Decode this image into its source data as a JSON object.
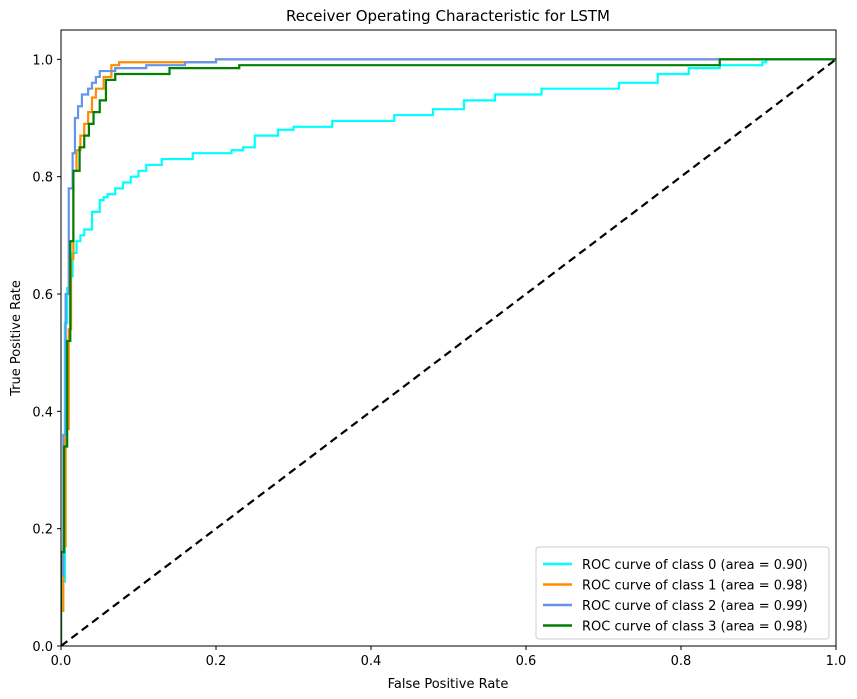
{
  "chart_data": {
    "type": "line",
    "title": "Receiver Operating Characteristic for LSTM",
    "xlabel": "False Positive Rate",
    "ylabel": "True Positive Rate",
    "xlim": [
      0.0,
      1.0
    ],
    "ylim": [
      0.0,
      1.05
    ],
    "x_ticks": [
      0.0,
      0.2,
      0.4,
      0.6,
      0.8,
      1.0
    ],
    "x_tick_labels": [
      "0.0",
      "0.2",
      "0.4",
      "0.6",
      "0.8",
      "1.0"
    ],
    "y_ticks": [
      0.0,
      0.2,
      0.4,
      0.6,
      0.8,
      1.0
    ],
    "y_tick_labels": [
      "0.0",
      "0.2",
      "0.4",
      "0.6",
      "0.8",
      "1.0"
    ],
    "grid": false,
    "legend_position": "lower right",
    "series": [
      {
        "name": "ROC curve of class 0 (area = 0.90)",
        "color": "#00ffff",
        "x": [
          0.0,
          0.0,
          0.005,
          0.005,
          0.008,
          0.008,
          0.012,
          0.012,
          0.015,
          0.015,
          0.02,
          0.02,
          0.025,
          0.025,
          0.03,
          0.03,
          0.04,
          0.04,
          0.05,
          0.05,
          0.055,
          0.055,
          0.06,
          0.06,
          0.07,
          0.07,
          0.08,
          0.08,
          0.09,
          0.09,
          0.1,
          0.1,
          0.11,
          0.11,
          0.13,
          0.13,
          0.17,
          0.17,
          0.22,
          0.22,
          0.235,
          0.235,
          0.25,
          0.25,
          0.28,
          0.28,
          0.3,
          0.3,
          0.35,
          0.35,
          0.43,
          0.43,
          0.48,
          0.48,
          0.52,
          0.52,
          0.56,
          0.56,
          0.62,
          0.62,
          0.72,
          0.72,
          0.77,
          0.77,
          0.81,
          0.81,
          0.85,
          0.85,
          0.905,
          0.905,
          0.91,
          0.91,
          1.0
        ],
        "y": [
          0.0,
          0.11,
          0.11,
          0.55,
          0.55,
          0.61,
          0.61,
          0.63,
          0.63,
          0.67,
          0.67,
          0.69,
          0.69,
          0.7,
          0.7,
          0.71,
          0.71,
          0.74,
          0.74,
          0.76,
          0.76,
          0.765,
          0.765,
          0.77,
          0.77,
          0.78,
          0.78,
          0.79,
          0.79,
          0.8,
          0.8,
          0.81,
          0.81,
          0.82,
          0.82,
          0.83,
          0.83,
          0.84,
          0.84,
          0.845,
          0.845,
          0.85,
          0.85,
          0.87,
          0.87,
          0.88,
          0.88,
          0.885,
          0.885,
          0.895,
          0.895,
          0.905,
          0.905,
          0.915,
          0.915,
          0.93,
          0.93,
          0.94,
          0.94,
          0.95,
          0.95,
          0.96,
          0.96,
          0.975,
          0.975,
          0.985,
          0.985,
          0.99,
          0.99,
          0.995,
          0.995,
          1.0,
          1.0
        ]
      },
      {
        "name": "ROC curve of class 1 (area = 0.98)",
        "color": "#ff8c00",
        "x": [
          0.0,
          0.0,
          0.003,
          0.003,
          0.006,
          0.006,
          0.01,
          0.01,
          0.013,
          0.013,
          0.016,
          0.016,
          0.02,
          0.02,
          0.025,
          0.025,
          0.03,
          0.03,
          0.035,
          0.035,
          0.04,
          0.04,
          0.045,
          0.045,
          0.055,
          0.055,
          0.065,
          0.065,
          0.075,
          0.075,
          0.2,
          0.2,
          1.0
        ],
        "y": [
          0.0,
          0.06,
          0.06,
          0.17,
          0.17,
          0.37,
          0.37,
          0.54,
          0.54,
          0.66,
          0.66,
          0.81,
          0.81,
          0.845,
          0.845,
          0.87,
          0.87,
          0.89,
          0.89,
          0.91,
          0.91,
          0.935,
          0.935,
          0.95,
          0.95,
          0.97,
          0.97,
          0.99,
          0.99,
          0.995,
          0.995,
          1.0,
          1.0
        ]
      },
      {
        "name": "ROC curve of class 2 (area = 0.99)",
        "color": "#6495ed",
        "x": [
          0.0,
          0.0,
          0.003,
          0.003,
          0.006,
          0.006,
          0.01,
          0.01,
          0.015,
          0.015,
          0.018,
          0.018,
          0.022,
          0.022,
          0.027,
          0.027,
          0.035,
          0.035,
          0.04,
          0.04,
          0.045,
          0.045,
          0.05,
          0.05,
          0.07,
          0.07,
          0.11,
          0.11,
          0.16,
          0.16,
          0.2,
          0.2,
          1.0
        ],
        "y": [
          0.0,
          0.12,
          0.12,
          0.36,
          0.36,
          0.6,
          0.6,
          0.78,
          0.78,
          0.84,
          0.84,
          0.9,
          0.9,
          0.92,
          0.92,
          0.94,
          0.94,
          0.95,
          0.95,
          0.96,
          0.96,
          0.97,
          0.97,
          0.98,
          0.98,
          0.985,
          0.985,
          0.99,
          0.99,
          0.995,
          0.995,
          1.0,
          1.0
        ]
      },
      {
        "name": "ROC curve of class 3 (area = 0.98)",
        "color": "#007f00",
        "x": [
          0.0,
          0.0,
          0.004,
          0.004,
          0.008,
          0.008,
          0.012,
          0.012,
          0.016,
          0.016,
          0.024,
          0.024,
          0.03,
          0.03,
          0.036,
          0.036,
          0.042,
          0.042,
          0.05,
          0.05,
          0.058,
          0.058,
          0.07,
          0.07,
          0.14,
          0.14,
          0.23,
          0.23,
          0.85,
          0.85,
          1.0
        ],
        "y": [
          0.0,
          0.16,
          0.16,
          0.34,
          0.34,
          0.52,
          0.52,
          0.69,
          0.69,
          0.81,
          0.81,
          0.85,
          0.85,
          0.87,
          0.87,
          0.89,
          0.89,
          0.91,
          0.91,
          0.93,
          0.93,
          0.965,
          0.965,
          0.975,
          0.975,
          0.985,
          0.985,
          0.99,
          0.99,
          1.0,
          1.0
        ]
      },
      {
        "name": "",
        "color": "#000000",
        "dashed": true,
        "x": [
          0.0,
          1.0
        ],
        "y": [
          0.0,
          1.0
        ]
      }
    ]
  }
}
